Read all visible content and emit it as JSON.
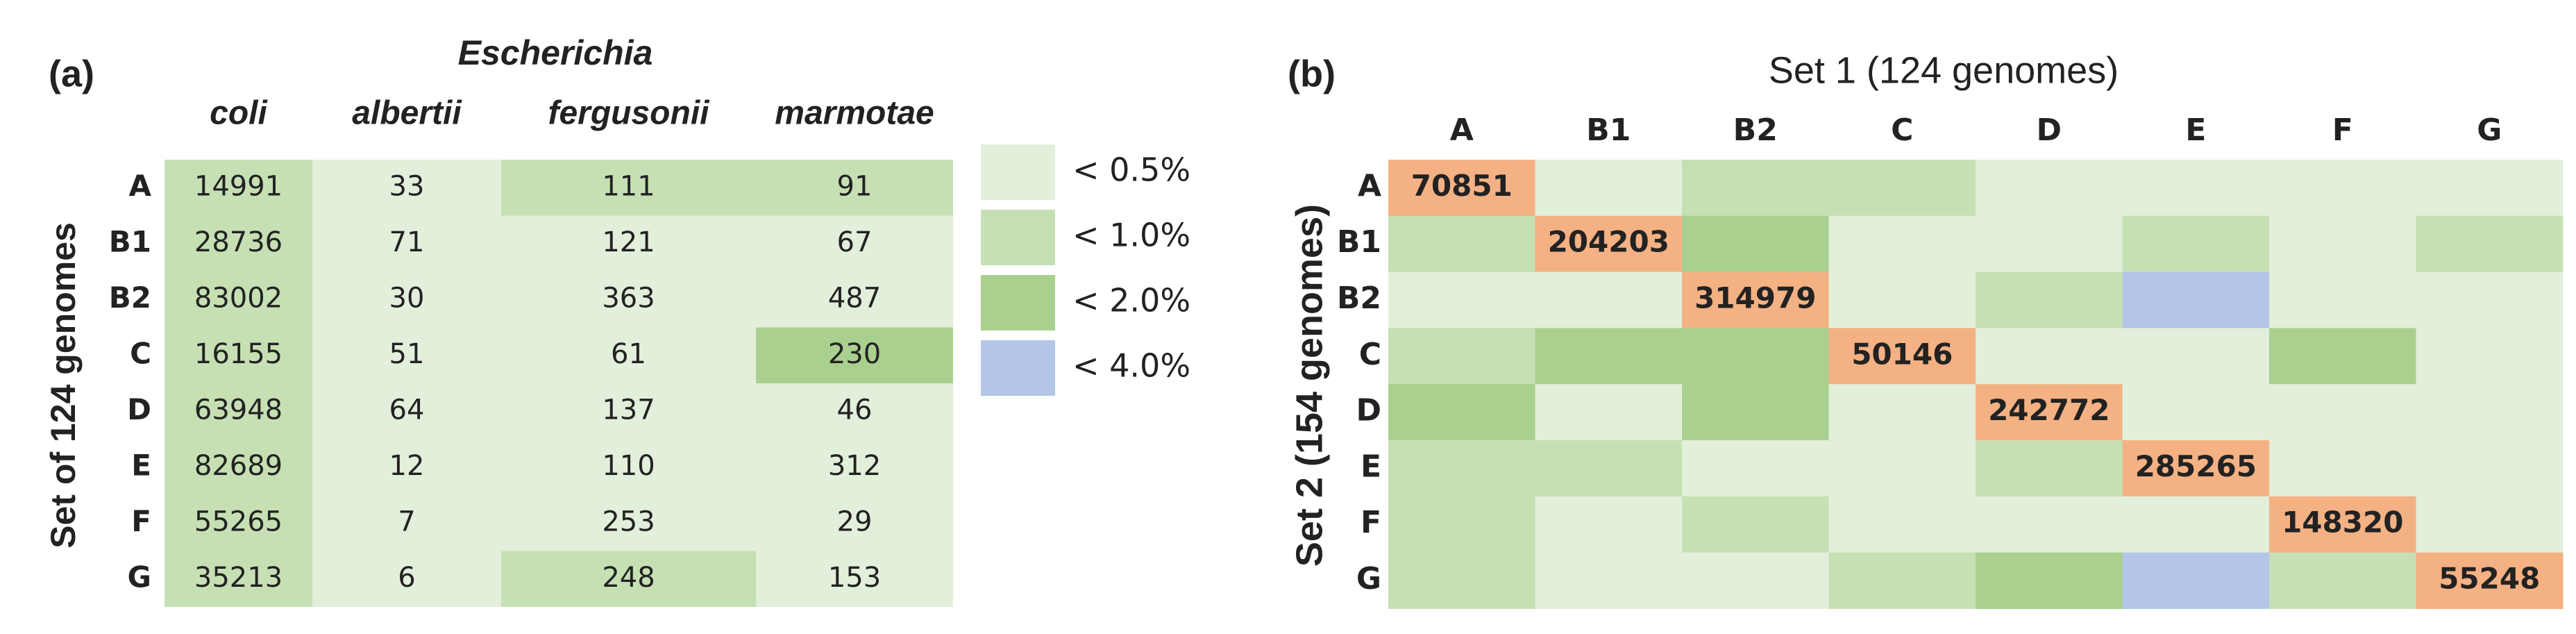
{
  "panel_a": {
    "label": "(a)",
    "genus": "Escherichia",
    "row_axis": "Set of 124 genomes",
    "columns": [
      "coli",
      "albertii",
      "fergusonii",
      "marmotae"
    ],
    "rows": [
      "A",
      "B1",
      "B2",
      "C",
      "D",
      "E",
      "F",
      "G"
    ],
    "values": [
      [
        14991,
        33,
        111,
        91
      ],
      [
        28736,
        71,
        121,
        67
      ],
      [
        83002,
        30,
        363,
        487
      ],
      [
        16155,
        51,
        61,
        230
      ],
      [
        63948,
        64,
        137,
        46
      ],
      [
        82689,
        12,
        110,
        312
      ],
      [
        55265,
        7,
        253,
        29
      ],
      [
        35213,
        6,
        248,
        153
      ]
    ],
    "levels": [
      [
        1,
        0,
        1,
        1
      ],
      [
        1,
        0,
        0,
        0
      ],
      [
        1,
        0,
        0,
        0
      ],
      [
        1,
        0,
        0,
        2
      ],
      [
        1,
        0,
        0,
        0
      ],
      [
        1,
        0,
        0,
        0
      ],
      [
        1,
        0,
        0,
        0
      ],
      [
        1,
        0,
        1,
        0
      ]
    ]
  },
  "legend": [
    {
      "label": "< 0.5%",
      "color": "#e2efda"
    },
    {
      "label": "< 1.0%",
      "color": "#c6e0b4"
    },
    {
      "label": "< 2.0%",
      "color": "#a9d08e"
    },
    {
      "label": "< 4.0%",
      "color": "#b4c6e7"
    }
  ],
  "panel_b": {
    "label": "(b)",
    "title": "Set 1 (124 genomes)",
    "row_axis": "Set 2 (154 genomes)",
    "columns": [
      "A",
      "B1",
      "B2",
      "C",
      "D",
      "E",
      "F",
      "G"
    ],
    "rows": [
      "A",
      "B1",
      "B2",
      "C",
      "D",
      "E",
      "F",
      "G"
    ],
    "diagonal": [
      70851,
      204203,
      314979,
      50146,
      242772,
      285265,
      148320,
      55248
    ],
    "diagonal_color": "#f4b183",
    "levels": [
      [
        null,
        0,
        1,
        1,
        0,
        0,
        0,
        0
      ],
      [
        1,
        null,
        2,
        0,
        0,
        1,
        0,
        1
      ],
      [
        0,
        0,
        null,
        0,
        1,
        3,
        0,
        0
      ],
      [
        1,
        2,
        2,
        null,
        0,
        0,
        2,
        0
      ],
      [
        2,
        0,
        2,
        0,
        null,
        0,
        0,
        0
      ],
      [
        1,
        1,
        0,
        0,
        1,
        null,
        0,
        0
      ],
      [
        1,
        0,
        1,
        0,
        0,
        0,
        null,
        0
      ],
      [
        1,
        0,
        0,
        1,
        2,
        3,
        1,
        null
      ]
    ]
  }
}
